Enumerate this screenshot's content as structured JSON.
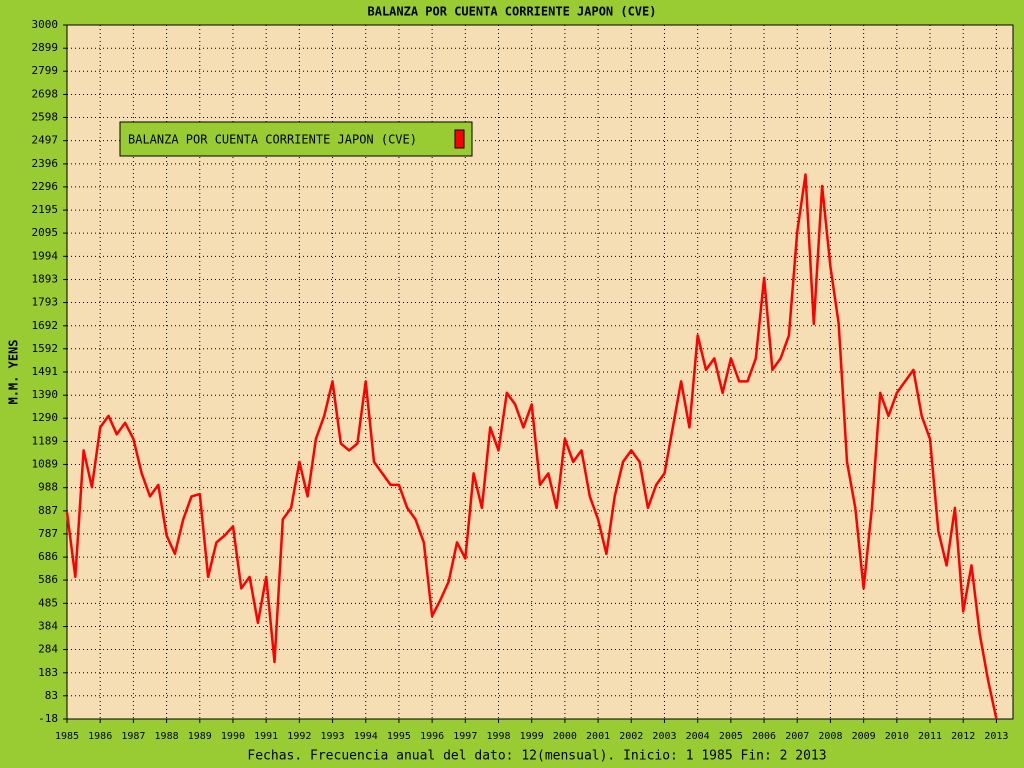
{
  "chart_data": {
    "type": "line",
    "title": "BALANZA POR CUENTA CORRIENTE JAPON (CVE)",
    "y_label": "M.M. YENS",
    "x_label": "Fechas. Frecuencia anual del dato: 12(mensual). Inicio: 1 1985 Fin: 2 2013",
    "x": [
      1985,
      1985.25,
      1985.5,
      1985.75,
      1986,
      1986.25,
      1986.5,
      1986.75,
      1987,
      1987.25,
      1987.5,
      1987.75,
      1988,
      1988.25,
      1988.5,
      1988.75,
      1989,
      1989.25,
      1989.5,
      1989.75,
      1990,
      1990.25,
      1990.5,
      1990.75,
      1991,
      1991.25,
      1991.5,
      1991.75,
      1992,
      1992.25,
      1992.5,
      1992.75,
      1993,
      1993.25,
      1993.5,
      1993.75,
      1994,
      1994.25,
      1994.5,
      1994.75,
      1995,
      1995.25,
      1995.5,
      1995.75,
      1996,
      1996.25,
      1996.5,
      1996.75,
      1997,
      1997.25,
      1997.5,
      1997.75,
      1998,
      1998.25,
      1998.5,
      1998.75,
      1999,
      1999.25,
      1999.5,
      1999.75,
      2000,
      2000.25,
      2000.5,
      2000.75,
      2001,
      2001.25,
      2001.5,
      2001.75,
      2002,
      2002.25,
      2002.5,
      2002.75,
      2003,
      2003.25,
      2003.5,
      2003.75,
      2004,
      2004.25,
      2004.5,
      2004.75,
      2005,
      2005.25,
      2005.5,
      2005.75,
      2006,
      2006.25,
      2006.5,
      2006.75,
      2007,
      2007.25,
      2007.5,
      2007.75,
      2008,
      2008.25,
      2008.5,
      2008.75,
      2009,
      2009.25,
      2009.5,
      2009.75,
      2010,
      2010.25,
      2010.5,
      2010.75,
      2011,
      2011.25,
      2011.5,
      2011.75,
      2012,
      2012.25,
      2012.5,
      2012.75,
      2013
    ],
    "series": [
      {
        "name": "BALANZA POR CUENTA CORRIENTE JAPON (CVE)",
        "color": "#ff0000",
        "values": [
          880,
          600,
          1150,
          990,
          1250,
          1300,
          1220,
          1270,
          1200,
          1050,
          950,
          1000,
          780,
          700,
          850,
          950,
          960,
          600,
          750,
          780,
          820,
          550,
          600,
          400,
          600,
          230,
          850,
          900,
          1100,
          950,
          1200,
          1300,
          1450,
          1180,
          1150,
          1180,
          1450,
          1100,
          1050,
          1000,
          1000,
          900,
          850,
          750,
          430,
          500,
          580,
          750,
          680,
          1050,
          900,
          1250,
          1150,
          1400,
          1350,
          1250,
          1350,
          1000,
          1050,
          900,
          1200,
          1100,
          1150,
          950,
          850,
          700,
          950,
          1100,
          1150,
          1100,
          900,
          1000,
          1050,
          1250,
          1450,
          1250,
          1650,
          1500,
          1550,
          1400,
          1550,
          1450,
          1450,
          1550,
          1900,
          1500,
          1550,
          1650,
          2100,
          2350,
          1700,
          2300,
          1950,
          1700,
          1100,
          900,
          550,
          900,
          1400,
          1300,
          1400,
          1450,
          1500,
          1300,
          1200,
          800,
          650,
          900,
          450,
          650,
          350,
          150,
          -18
        ]
      }
    ],
    "xlim": [
      1985,
      2013.5
    ],
    "xticks": [
      1985,
      1986,
      1987,
      1988,
      1989,
      1990,
      1991,
      1992,
      1993,
      1994,
      1995,
      1996,
      1997,
      1998,
      1999,
      2000,
      2001,
      2002,
      2003,
      2004,
      2005,
      2006,
      2007,
      2008,
      2009,
      2010,
      2011,
      2012,
      2013
    ],
    "ylim": [
      -18,
      3000
    ],
    "yticks": [
      -18,
      83,
      183,
      284,
      384,
      485,
      586,
      686,
      787,
      887,
      988,
      1089,
      1189,
      1290,
      1390,
      1491,
      1592,
      1692,
      1793,
      1893,
      1994,
      2095,
      2195,
      2296,
      2396,
      2497,
      2598,
      2698,
      2799,
      2899,
      3000
    ],
    "grid": true,
    "legend": "upper left"
  }
}
